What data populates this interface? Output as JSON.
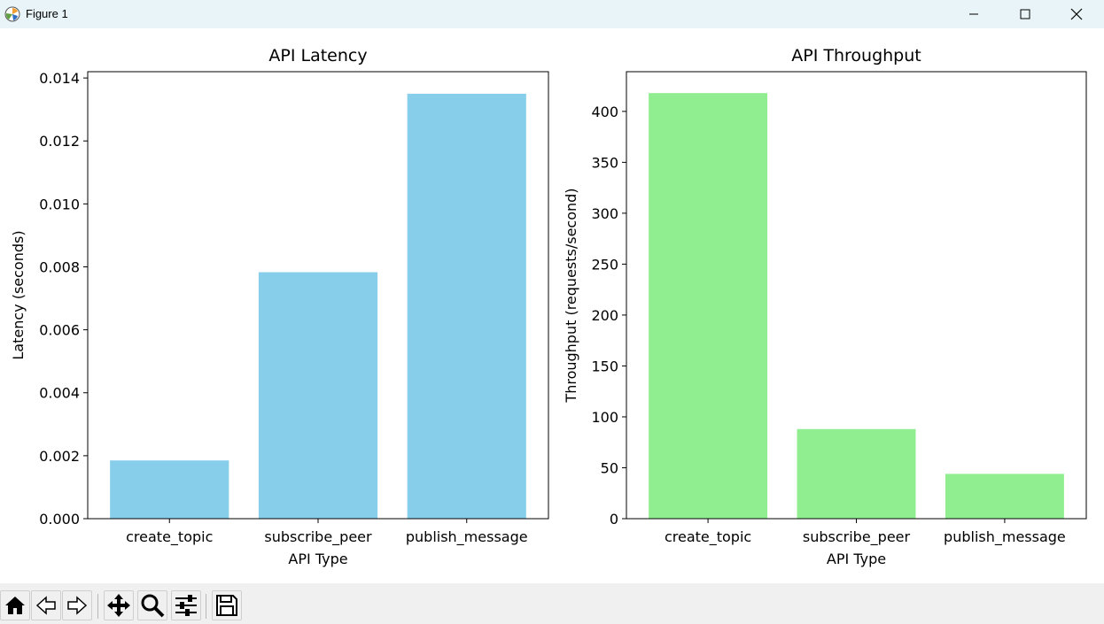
{
  "window": {
    "title": "Figure 1"
  },
  "toolbar": {
    "buttons": [
      {
        "icon": "home-icon"
      },
      {
        "icon": "back-arrow-icon"
      },
      {
        "icon": "forward-arrow-icon"
      },
      {
        "icon": "pan-move-icon"
      },
      {
        "icon": "zoom-magnifier-icon"
      },
      {
        "icon": "configure-subplots-icon"
      },
      {
        "icon": "save-floppy-icon"
      }
    ]
  },
  "chart_data": [
    {
      "type": "bar",
      "title": "API Latency",
      "xlabel": "API Type",
      "ylabel": "Latency (seconds)",
      "categories": [
        "create_topic",
        "subscribe_peer",
        "publish_message"
      ],
      "values": [
        0.00185,
        0.00783,
        0.0135
      ],
      "ylim": [
        0,
        0.0142
      ],
      "yticks": [
        "0.000",
        "0.002",
        "0.004",
        "0.006",
        "0.008",
        "0.010",
        "0.012",
        "0.014"
      ],
      "ytick_values": [
        0,
        0.002,
        0.004,
        0.006,
        0.008,
        0.01,
        0.012,
        0.014
      ],
      "color": "#87ceeb",
      "grid": false
    },
    {
      "type": "bar",
      "title": "API Throughput",
      "xlabel": "API Type",
      "ylabel": "Throughput (requests/second)",
      "categories": [
        "create_topic",
        "subscribe_peer",
        "publish_message"
      ],
      "values": [
        418,
        88,
        44
      ],
      "ylim": [
        0,
        439
      ],
      "yticks": [
        "0",
        "50",
        "100",
        "150",
        "200",
        "250",
        "300",
        "350",
        "400"
      ],
      "ytick_values": [
        0,
        50,
        100,
        150,
        200,
        250,
        300,
        350,
        400
      ],
      "color": "#90ee90",
      "grid": false
    }
  ]
}
